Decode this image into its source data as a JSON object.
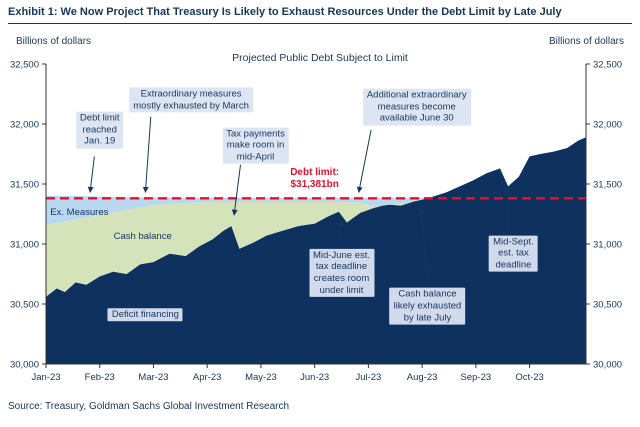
{
  "header": {
    "title": "Exhibit 1: We Now Project That Treasury Is Likely to Exhaust Resources Under the Debt Limit by Late July"
  },
  "axis_captions": {
    "left": "Billions of dollars",
    "right": "Billions of dollars"
  },
  "footer": {
    "source": "Source: Treasury, Goldman Sachs Global Investment Research"
  },
  "chart_data": {
    "type": "area",
    "title": "Projected Public Debt Subject to Limit",
    "xlim": [
      0,
      10.05
    ],
    "ylim": [
      30000,
      32500
    ],
    "x_tick_months": [
      0,
      1,
      2,
      3,
      4,
      5,
      6,
      7,
      8,
      9
    ],
    "x_tick_labels": [
      "Jan-23",
      "Feb-23",
      "Mar-23",
      "Apr-23",
      "May-23",
      "Jun-23",
      "Jul-23",
      "Aug-23",
      "Sep-23",
      "Oct-23"
    ],
    "y_tick_values": [
      30000,
      30500,
      31000,
      31500,
      32000,
      32500
    ],
    "y_tick_labels": [
      "30,000",
      "30,500",
      "31,000",
      "31,500",
      "32,000",
      "32,500"
    ],
    "debt_limit": {
      "value": 31381,
      "color": "#e8112d"
    },
    "x": [
      0,
      0.2,
      0.35,
      0.55,
      0.75,
      1.0,
      1.25,
      1.5,
      1.75,
      2.0,
      2.3,
      2.6,
      2.85,
      3.1,
      3.3,
      3.45,
      3.6,
      3.85,
      4.1,
      4.4,
      4.7,
      5.0,
      5.25,
      5.45,
      5.6,
      5.85,
      6.1,
      6.35,
      6.6,
      6.85,
      7.0,
      7.2,
      7.45,
      7.7,
      7.95,
      8.2,
      8.45,
      8.6,
      8.8,
      9.0,
      9.2,
      9.45,
      9.7,
      9.9,
      10.05
    ],
    "series": [
      {
        "name": "Deficit financing",
        "color": "#0e3160",
        "top": [
          30560,
          30630,
          30600,
          30680,
          30660,
          30730,
          30770,
          30750,
          30830,
          30850,
          30920,
          30900,
          30980,
          31040,
          31110,
          31150,
          30960,
          31010,
          31070,
          31110,
          31150,
          31170,
          31230,
          31270,
          31180,
          31260,
          31300,
          31330,
          31320,
          31355,
          31370,
          31395,
          31430,
          31480,
          31530,
          31590,
          31630,
          31480,
          31560,
          31730,
          31750,
          31770,
          31800,
          31860,
          31890
        ]
      },
      {
        "name": "Cash balance",
        "color": "#d5e3ba",
        "top": [
          31160,
          31175,
          31190,
          31205,
          31220,
          31245,
          31265,
          31285,
          31305,
          31325,
          31335,
          31340,
          31345,
          31350,
          31350,
          31350,
          31350,
          31350,
          31350,
          31350,
          31350,
          31350,
          31350,
          31350,
          31345,
          31345,
          31310,
          31325,
          31335,
          31360,
          31370,
          31395,
          31430,
          31480,
          31530,
          31590,
          31630,
          31480,
          31560,
          31730,
          31750,
          31770,
          31800,
          31860,
          31890
        ]
      },
      {
        "name": "Ex. Measures",
        "color": "#b9d7ee",
        "top": [
          31400,
          31400,
          31400,
          31400,
          31398,
          31395,
          31392,
          31390,
          31390,
          31388,
          31386,
          31385,
          31385,
          31385,
          31385,
          31385,
          31385,
          31385,
          31385,
          31385,
          31385,
          31385,
          31385,
          31385,
          31385,
          31385,
          31385,
          31385,
          31385,
          31385,
          31385,
          31395,
          31430,
          31480,
          31530,
          31590,
          31630,
          31480,
          31560,
          31730,
          31750,
          31770,
          31800,
          31860,
          31890
        ]
      }
    ],
    "annotations": [
      {
        "id": "debt-limit-reached-note",
        "text": "Debt limit\nreached\nJan. 19",
        "x": 1.0,
        "y": 31950,
        "style": "box",
        "arrow": {
          "x1": 0.9,
          "y1": 31730,
          "x2": 0.82,
          "y2": 31430
        }
      },
      {
        "id": "extraordinary-measures-note",
        "text": "Extraordinary measures\nmostly exhausted by March",
        "x": 2.7,
        "y": 32200,
        "style": "box",
        "arrow": {
          "x1": 1.95,
          "y1": 32060,
          "x2": 1.85,
          "y2": 31430
        }
      },
      {
        "id": "tax-payments-note",
        "text": "Tax payments\nmake room in\nmid-April",
        "x": 3.9,
        "y": 31820,
        "style": "box",
        "arrow": {
          "x1": 3.62,
          "y1": 31660,
          "x2": 3.5,
          "y2": 31240
        }
      },
      {
        "id": "additional-measures-note",
        "text": "Additional extraordinary\nmeasures become\navailable June 30",
        "x": 6.9,
        "y": 32140,
        "style": "box",
        "arrow": {
          "x1": 6.05,
          "y1": 31950,
          "x2": 5.82,
          "y2": 31430
        }
      },
      {
        "id": "debt-limit-value-label",
        "text": "Debt limit:\n$31,381bn",
        "x": 5.0,
        "y": 31540,
        "style": "red",
        "arrow": null
      },
      {
        "id": "mid-june-tax-note",
        "text": "Mid-June est.\ntax deadline\ncreates room\nunder limit",
        "x": 5.5,
        "y": 30760,
        "style": "box",
        "arrow": {
          "x1": 5.5,
          "y1": 30990,
          "x2": 5.5,
          "y2": 31200
        }
      },
      {
        "id": "cash-exhausted-note",
        "text": "Cash balance\nlikely exhausted\nby late July",
        "x": 7.1,
        "y": 30480,
        "style": "box",
        "arrow": {
          "x1": 7.1,
          "y1": 30680,
          "x2": 6.98,
          "y2": 31300
        }
      },
      {
        "id": "mid-sept-tax-note",
        "text": "Mid-Sept.\nest. tax\ndeadline",
        "x": 8.7,
        "y": 30920,
        "style": "box",
        "arrow": {
          "x1": 8.6,
          "y1": 31120,
          "x2": 8.55,
          "y2": 31470
        }
      }
    ],
    "area_labels": [
      {
        "id": "ex-measures-label",
        "text": "Ex. Measures",
        "x": 0.08,
        "y": 31255,
        "align": "left",
        "style": "plain"
      },
      {
        "id": "cash-balance-label",
        "text": "Cash balance",
        "x": 1.8,
        "y": 31060,
        "align": "center",
        "style": "plain"
      },
      {
        "id": "deficit-financing-label",
        "text": "Deficit financing",
        "x": 1.85,
        "y": 30410,
        "align": "center",
        "style": "box"
      }
    ]
  }
}
